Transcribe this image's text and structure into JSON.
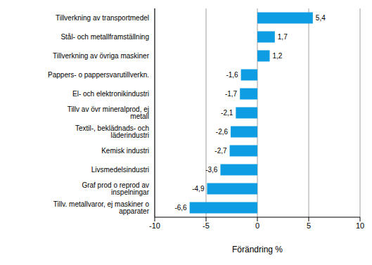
{
  "chart_data": {
    "type": "bar",
    "orientation": "horizontal",
    "categories": [
      "Tillverkning av transportmedel",
      "Stål- och metallframställning",
      "Tillverkning av övriga maskiner",
      "Pappers- o pappersvarutillverkn.",
      "El- och elektronikindustri",
      "Tillv av övr mineralprod, ej metall",
      "Textil-, beklädnads- och läderindustri",
      "Kemisk industri",
      "Livsmedelsindustri",
      "Graf prod o reprod av inspelningar",
      "Tillv. metallvaror, ej maskiner o apparater"
    ],
    "values": [
      5.4,
      1.7,
      1.2,
      -1.6,
      -1.7,
      -2.1,
      -2.6,
      -2.7,
      -3.6,
      -4.9,
      -6.6
    ],
    "value_labels": [
      "5,4",
      "1,7",
      "1,2",
      "-1,6",
      "-1,7",
      "-2,1",
      "-2,6",
      "-2,7",
      "-3,6",
      "-4,9",
      "-6,6"
    ],
    "data_labels": true,
    "color": "#0e9ce2",
    "xlim": [
      -10,
      10
    ],
    "xticks": [
      -10,
      -5,
      0,
      5,
      10
    ],
    "xlabel": "Förändring %",
    "grid": true
  }
}
